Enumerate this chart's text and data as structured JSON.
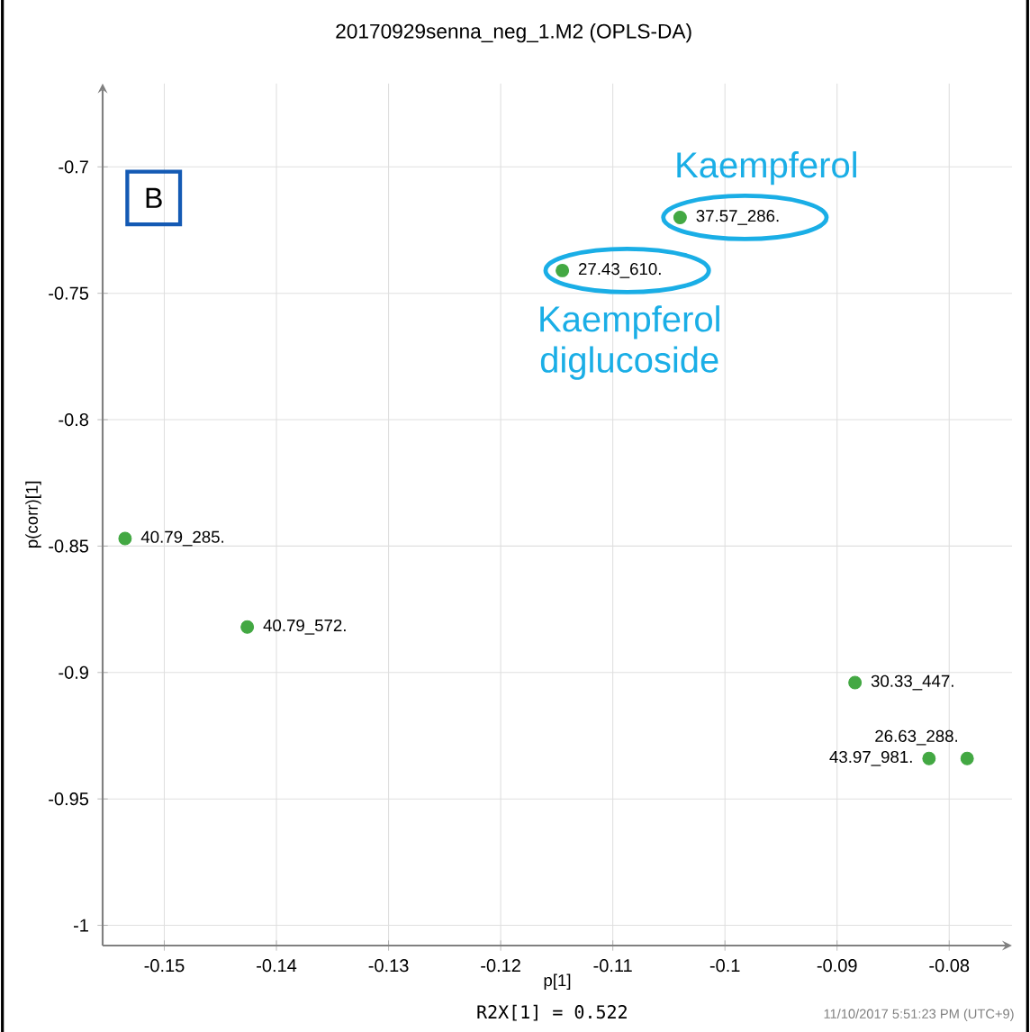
{
  "chart_data": {
    "type": "scatter",
    "title": "20170929senna_neg_1.M2 (OPLS-DA)",
    "xlabel": "p[1]",
    "ylabel": "p(corr)[1]",
    "x": [
      -0.104,
      -0.1145,
      -0.1535,
      -0.1426,
      -0.0884,
      -0.0818,
      -0.0784
    ],
    "series": [
      {
        "color": "#43a843",
        "values": [
          -0.72,
          -0.741,
          -0.847,
          -0.882,
          -0.904,
          -0.934,
          -0.934
        ]
      }
    ],
    "xlim": [
      -0.1555,
      -0.0744
    ],
    "ylim": [
      -1.008,
      -0.667
    ],
    "xticks": [
      -0.15,
      -0.14,
      -0.13,
      -0.12,
      -0.11,
      -0.1,
      -0.09,
      -0.08
    ],
    "yticks": [
      -0.7,
      -0.75,
      -0.8,
      -0.85,
      -0.9,
      -0.95,
      -1
    ],
    "grid": true,
    "marker": "circle",
    "annotations": [
      {
        "text": "37.57_286.",
        "x": -0.104,
        "y": -0.72
      },
      {
        "text": "27.43_610.",
        "x": -0.1145,
        "y": -0.741
      },
      {
        "text": "40.79_285.",
        "x": -0.1535,
        "y": -0.847
      },
      {
        "text": "40.79_572.",
        "x": -0.1426,
        "y": -0.882
      },
      {
        "text": "30.33_447.",
        "x": -0.0884,
        "y": -0.904
      },
      {
        "text": "43.97_981.",
        "x": -0.0818,
        "y": -0.934
      },
      {
        "text": "26.63_288.",
        "x": -0.0784,
        "y": -0.934
      },
      {
        "text": "Kaempferol",
        "x": -0.104,
        "y": -0.72
      },
      {
        "text": "Kaempferol diglucoside",
        "x": -0.1145,
        "y": -0.741
      },
      "B",
      "R2X[1] = 0.522",
      "11/10/2017 5:51:23 PM (UTC+9)"
    ]
  }
}
